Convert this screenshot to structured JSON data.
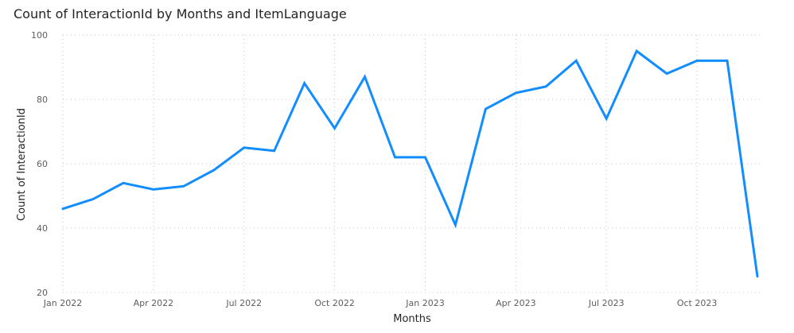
{
  "chart_data": {
    "type": "line",
    "title": "Count of InteractionId by Months and ItemLanguage",
    "xlabel": "Months",
    "ylabel": "Count of InteractionId",
    "ylim": [
      20,
      100
    ],
    "yticks": [
      20,
      40,
      60,
      80,
      100
    ],
    "grid": true,
    "x_tick_labels": [
      {
        "index": 0,
        "label": "Jan 2022"
      },
      {
        "index": 3,
        "label": "Apr 2022"
      },
      {
        "index": 6,
        "label": "Jul 2022"
      },
      {
        "index": 9,
        "label": "Oct 2022"
      },
      {
        "index": 12,
        "label": "Jan 2023"
      },
      {
        "index": 15,
        "label": "Apr 2023"
      },
      {
        "index": 18,
        "label": "Jul 2023"
      },
      {
        "index": 21,
        "label": "Oct 2023"
      }
    ],
    "categories": [
      "2022-01",
      "2022-02",
      "2022-03",
      "2022-04",
      "2022-05",
      "2022-06",
      "2022-07",
      "2022-08",
      "2022-09",
      "2022-10",
      "2022-11",
      "2022-12",
      "2023-01",
      "2023-02",
      "2023-03",
      "2023-04",
      "2023-05",
      "2023-06",
      "2023-07",
      "2023-08",
      "2023-09",
      "2023-10",
      "2023-11",
      "2023-12"
    ],
    "series": [
      {
        "name": "Count of InteractionId",
        "color": "#118DFF",
        "values": [
          46,
          49,
          54,
          52,
          53,
          58,
          65,
          64,
          85,
          71,
          87,
          62,
          62,
          41,
          77,
          82,
          84,
          92,
          74,
          95,
          88,
          92,
          92,
          25
        ]
      }
    ]
  }
}
